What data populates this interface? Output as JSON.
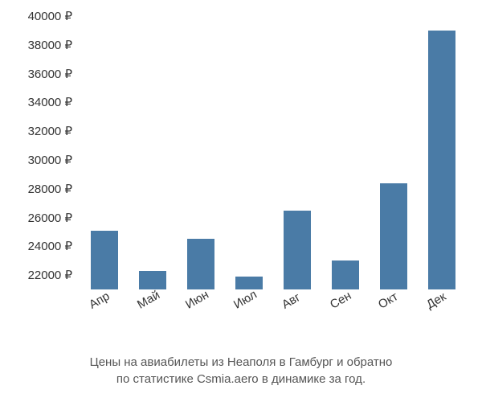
{
  "chart": {
    "type": "bar",
    "ymin": 21000,
    "ymax": 40000,
    "ytick_step": 2000,
    "currency_suffix": " ₽",
    "bar_color": "#4a7ba6",
    "bar_width_ratio": 0.58,
    "background_color": "#ffffff",
    "text_color": "#333333",
    "caption_color": "#555555",
    "axis_fontsize": 15,
    "caption_fontsize": 15,
    "x_label_rotation": -30,
    "categories": [
      "Апр",
      "Май",
      "Июн",
      "Июл",
      "Авг",
      "Сен",
      "Окт",
      "Дек"
    ],
    "values": [
      25100,
      22300,
      24500,
      21900,
      26500,
      23000,
      28400,
      39000
    ],
    "y_ticks": [
      22000,
      24000,
      26000,
      28000,
      30000,
      32000,
      34000,
      36000,
      38000,
      40000
    ]
  },
  "caption": {
    "line1": "Цены на авиабилеты из Неаполя в Гамбург и обратно",
    "line2": "по статистике Csmia.aero в динамике за год."
  }
}
